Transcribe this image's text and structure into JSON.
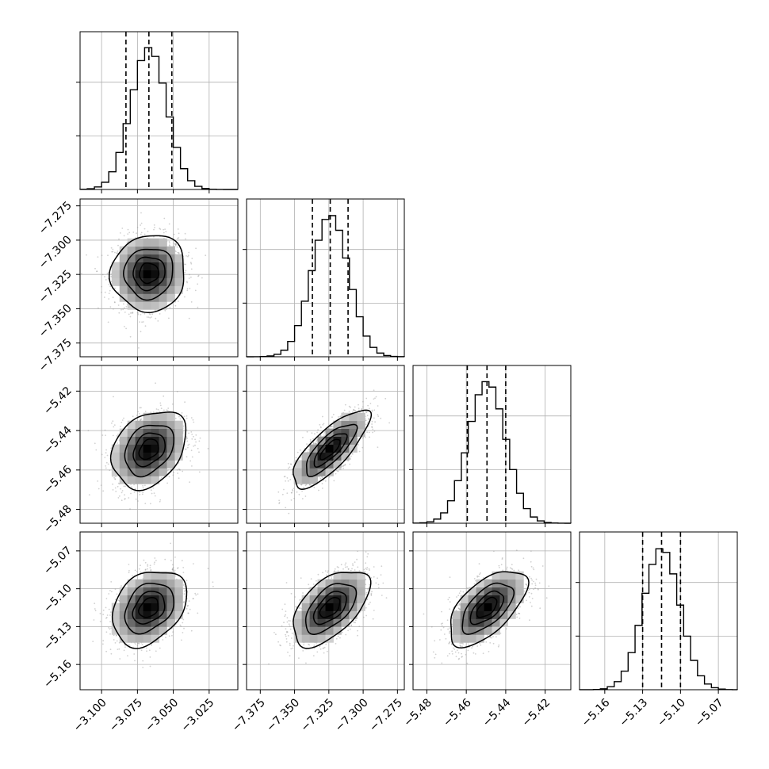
{
  "figure": {
    "style": {
      "line_color": "#000000",
      "grid_color": "#b0b0b0",
      "cell_color_max": "#000000",
      "scatter_color": "#9a9a9a",
      "background": "#ffffff"
    }
  },
  "chart_data": {
    "type": "corner",
    "parameters": [
      {
        "index": 0,
        "range": [
          -3.115,
          -3.005
        ],
        "ticks": [
          -3.1,
          -3.075,
          -3.05,
          -3.025
        ],
        "tick_labels": [
          "−3.100",
          "−3.075",
          "−3.050",
          "−3.025"
        ],
        "mean": -3.067,
        "quantiles": [
          -3.083,
          -3.067,
          -3.051
        ],
        "sigma": 0.0125,
        "hist_bin_width": 0.005
      },
      {
        "index": 1,
        "range": [
          -7.385,
          -7.27
        ],
        "ticks": [
          -7.375,
          -7.35,
          -7.325,
          -7.3,
          -7.275
        ],
        "tick_labels": [
          "−7.375",
          "−7.350",
          "−7.325",
          "−7.300",
          "−7.275"
        ],
        "mean": -7.324,
        "quantiles": [
          -7.337,
          -7.324,
          -7.311
        ],
        "sigma": 0.0135,
        "hist_bin_width": 0.005
      },
      {
        "index": 2,
        "range": [
          -5.487,
          -5.407
        ],
        "ticks": [
          -5.48,
          -5.46,
          -5.44,
          -5.42
        ],
        "tick_labels": [
          "−5.48",
          "−5.46",
          "−5.44",
          "−5.42"
        ],
        "mean": -5.4495,
        "quantiles": [
          -5.4595,
          -5.4495,
          -5.44
        ],
        "sigma": 0.0095,
        "hist_bin_width": 0.0035
      },
      {
        "index": 3,
        "range": [
          -5.18,
          -5.055
        ],
        "ticks": [
          -5.16,
          -5.13,
          -5.1,
          -5.07
        ],
        "tick_labels": [
          "−5.16",
          "−5.13",
          "−5.10",
          "−5.07"
        ],
        "mean": -5.115,
        "quantiles": [
          -5.13,
          -5.115,
          -5.1
        ],
        "sigma": 0.0145,
        "hist_bin_width": 0.0055
      }
    ],
    "correlations": [
      {
        "pair": [
          0,
          1
        ],
        "rho": 0.05
      },
      {
        "pair": [
          0,
          2
        ],
        "rho": 0.3
      },
      {
        "pair": [
          1,
          2
        ],
        "rho": 0.78
      },
      {
        "pair": [
          0,
          3
        ],
        "rho": 0.3
      },
      {
        "pair": [
          1,
          3
        ],
        "rho": 0.55
      },
      {
        "pair": [
          2,
          3
        ],
        "rho": 0.6
      }
    ],
    "contour_levels_sigma": [
      0.5,
      1.0,
      1.5,
      2.0
    ],
    "quantile_line_style": "dashed",
    "grid": true
  }
}
